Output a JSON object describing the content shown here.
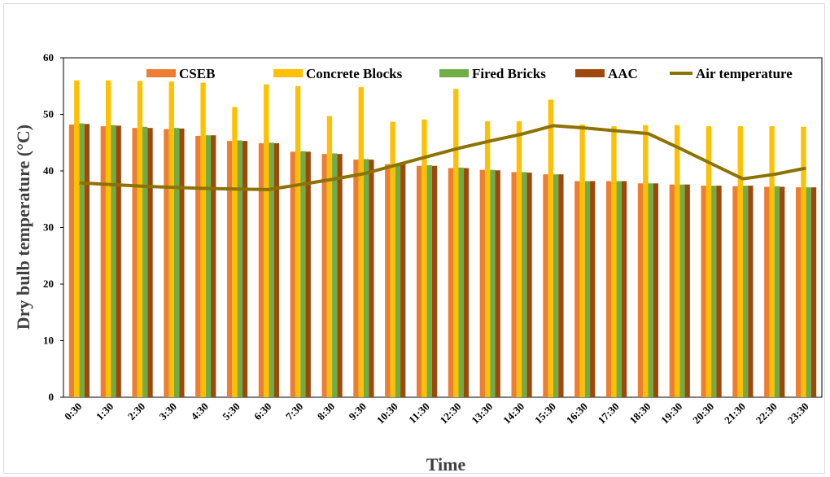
{
  "chart_data": {
    "type": "bar",
    "xlabel": "Time",
    "ylabel": "Dry bulb temperature (°C)",
    "ylim": [
      0,
      60
    ],
    "yticks": [
      0,
      10,
      20,
      30,
      40,
      50,
      60
    ],
    "grid": false,
    "legend_position": "top",
    "categories": [
      "0:30",
      "1:30",
      "2:30",
      "3:30",
      "4:30",
      "5:30",
      "6:30",
      "7:30",
      "8:30",
      "9:30",
      "10:30",
      "11:30",
      "12:30",
      "13:30",
      "14:30",
      "15:30",
      "16:30",
      "17:30",
      "18:30",
      "19:30",
      "20:30",
      "21:30",
      "22:30",
      "23:30"
    ],
    "series": [
      {
        "name": "CSEB",
        "type": "bar",
        "color": "#ED7D31",
        "values": [
          48.2,
          47.9,
          47.6,
          47.4,
          46.2,
          45.3,
          44.9,
          43.4,
          43.0,
          42.0,
          41.2,
          40.9,
          40.5,
          40.2,
          39.8,
          39.4,
          38.2,
          38.2,
          37.8,
          37.6,
          37.4,
          37.3,
          37.2,
          37.1
        ]
      },
      {
        "name": "Concrete Blocks",
        "type": "bar",
        "color": "#FFC000",
        "values": [
          56.0,
          56.0,
          55.9,
          55.8,
          55.6,
          51.3,
          55.3,
          55.0,
          49.7,
          54.8,
          48.7,
          49.1,
          54.5,
          48.8,
          48.8,
          52.6,
          48.2,
          47.9,
          48.1,
          48.1,
          47.9,
          47.9,
          47.9,
          47.8
        ]
      },
      {
        "name": "Fired Bricks",
        "type": "bar",
        "color": "#70AD47",
        "values": [
          48.4,
          48.1,
          47.8,
          47.6,
          46.3,
          45.4,
          45.0,
          43.5,
          43.1,
          42.1,
          41.3,
          41.0,
          40.6,
          40.2,
          39.8,
          39.4,
          38.2,
          38.2,
          37.8,
          37.6,
          37.4,
          37.4,
          37.3,
          37.1
        ]
      },
      {
        "name": "AAC",
        "type": "bar",
        "color": "#9E480E",
        "values": [
          48.3,
          48.0,
          47.6,
          47.5,
          46.3,
          45.3,
          44.9,
          43.4,
          43.0,
          42.0,
          41.2,
          40.9,
          40.5,
          40.1,
          39.7,
          39.4,
          38.2,
          38.2,
          37.8,
          37.6,
          37.4,
          37.4,
          37.2,
          37.1
        ]
      },
      {
        "name": "Air temperature",
        "type": "line",
        "color": "#8C7300",
        "values": [
          37.9,
          37.6,
          37.3,
          37.1,
          36.9,
          36.8,
          36.7,
          37.6,
          38.5,
          39.5,
          41.0,
          42.5,
          44.0,
          45.3,
          46.5,
          48.0,
          47.6,
          47.1,
          46.6,
          44.0,
          41.3,
          38.6,
          39.4,
          40.5
        ]
      }
    ]
  }
}
